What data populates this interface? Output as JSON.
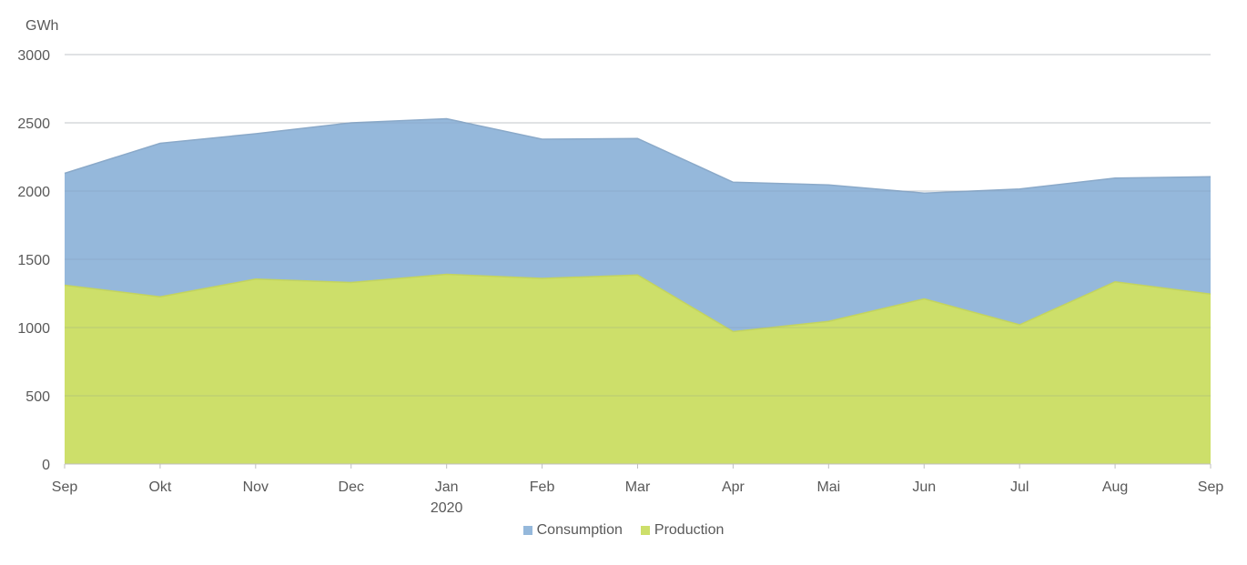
{
  "chart_data": {
    "type": "area",
    "stacked": false,
    "unit_label": "GWh",
    "categories": [
      "Sep",
      "Okt",
      "Nov",
      "Dec",
      "Jan",
      "Feb",
      "Mar",
      "Apr",
      "Mai",
      "Jun",
      "Jul",
      "Aug",
      "Sep"
    ],
    "year_marker": {
      "category_index": 4,
      "label": "2020"
    },
    "ylim": [
      0,
      3000
    ],
    "yticks": [
      0,
      500,
      1000,
      1500,
      2000,
      2500,
      3000
    ],
    "grid": true,
    "legend_position": "bottom",
    "series": [
      {
        "name": "Consumption",
        "color": "#95b8db",
        "values": [
          2130,
          2350,
          2420,
          2500,
          2530,
          2380,
          2385,
          2065,
          2045,
          1985,
          2015,
          2095,
          2105
        ]
      },
      {
        "name": "Production",
        "color": "#cddf6a",
        "values": [
          1310,
          1225,
          1355,
          1330,
          1390,
          1360,
          1385,
          970,
          1045,
          1210,
          1020,
          1335,
          1245
        ]
      }
    ]
  }
}
